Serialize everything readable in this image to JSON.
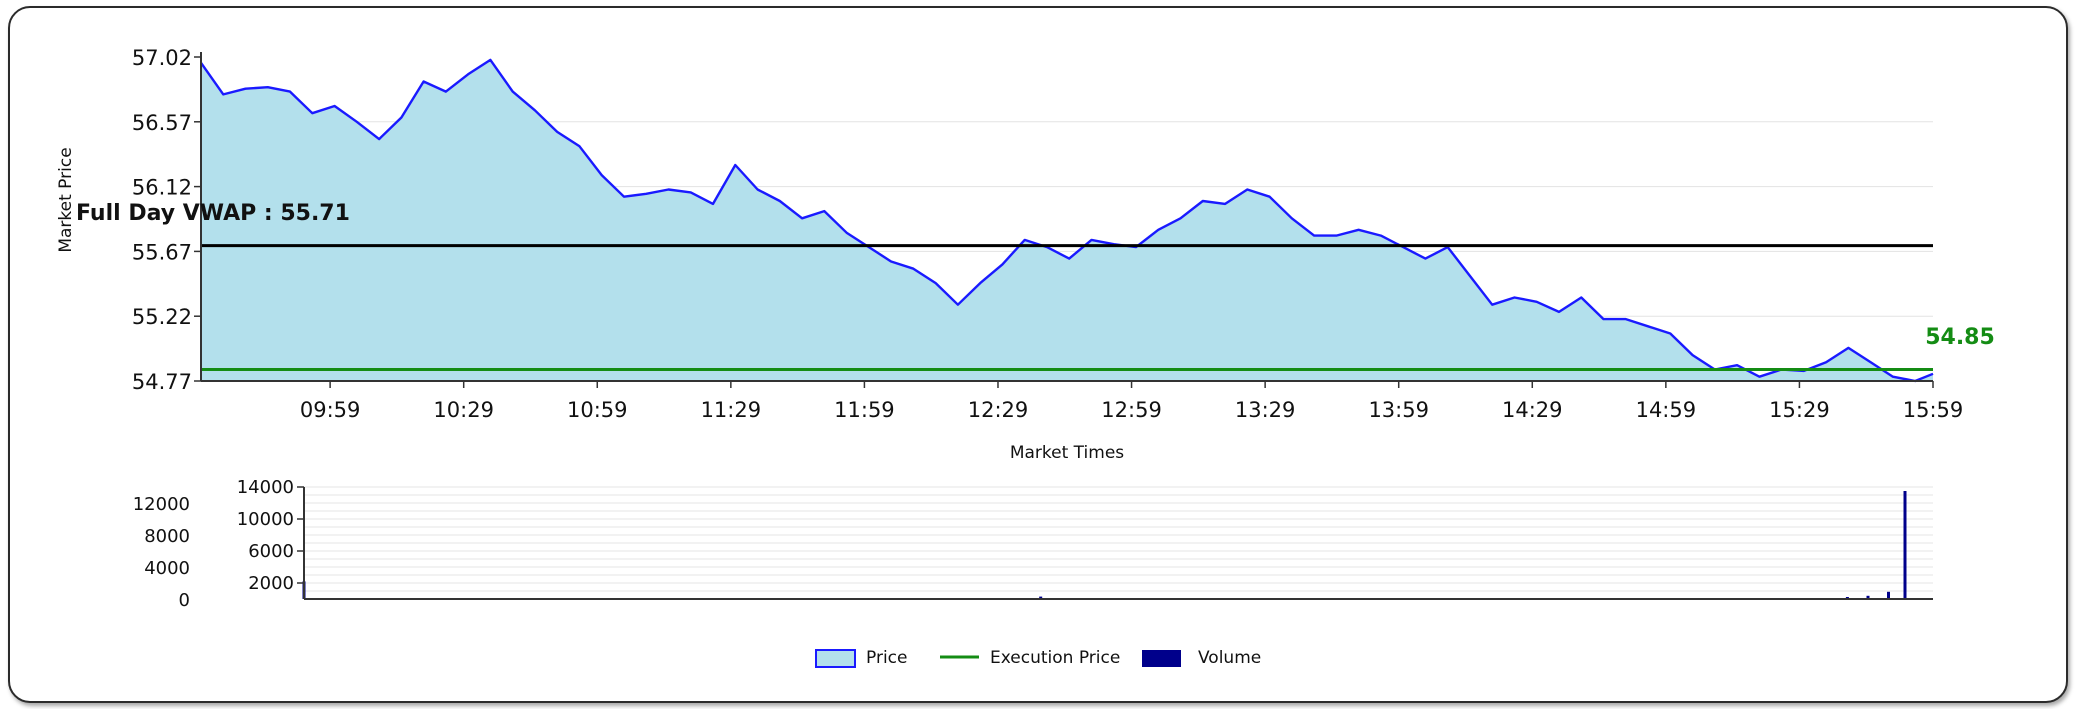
{
  "chart_data": [
    {
      "type": "area",
      "xlabel": "Market Times",
      "ylabel": "Market Price",
      "ylim": [
        54.77,
        57.02
      ],
      "y_ticks": [
        "57.02",
        "56.57",
        "56.12",
        "55.67",
        "55.22",
        "54.77"
      ],
      "x_ticks": [
        "09:59",
        "10:29",
        "10:59",
        "11:29",
        "11:59",
        "12:29",
        "12:59",
        "13:29",
        "13:59",
        "14:29",
        "14:59",
        "15:29",
        "15:59"
      ],
      "grid": true,
      "series": [
        {
          "name": "Price",
          "color": "#1a1aff",
          "fill": "#b3e0ec",
          "x": [
            "09:30",
            "09:35",
            "09:40",
            "09:45",
            "09:50",
            "09:55",
            "10:00",
            "10:05",
            "10:10",
            "10:15",
            "10:20",
            "10:25",
            "10:30",
            "10:35",
            "10:40",
            "10:45",
            "10:50",
            "10:55",
            "11:00",
            "11:05",
            "11:10",
            "11:15",
            "11:20",
            "11:25",
            "11:30",
            "11:35",
            "11:40",
            "11:45",
            "11:50",
            "11:55",
            "12:00",
            "12:05",
            "12:10",
            "12:15",
            "12:20",
            "12:25",
            "12:30",
            "12:35",
            "12:40",
            "12:45",
            "12:50",
            "12:55",
            "13:00",
            "13:05",
            "13:10",
            "13:15",
            "13:20",
            "13:25",
            "13:30",
            "13:35",
            "13:40",
            "13:45",
            "13:50",
            "13:55",
            "14:00",
            "14:05",
            "14:10",
            "14:15",
            "14:20",
            "14:25",
            "14:30",
            "14:35",
            "14:40",
            "14:45",
            "14:50",
            "14:55",
            "15:00",
            "15:05",
            "15:10",
            "15:15",
            "15:20",
            "15:25",
            "15:30",
            "15:35",
            "15:40",
            "15:45",
            "15:50",
            "15:55",
            "15:59"
          ],
          "values": [
            56.98,
            56.76,
            56.8,
            56.81,
            56.78,
            56.63,
            56.68,
            56.57,
            56.45,
            56.6,
            56.85,
            56.78,
            56.9,
            57.0,
            56.78,
            56.65,
            56.5,
            56.4,
            56.2,
            56.05,
            56.07,
            56.1,
            56.08,
            56.0,
            56.27,
            56.1,
            56.02,
            55.9,
            55.95,
            55.8,
            55.7,
            55.6,
            55.55,
            55.45,
            55.3,
            55.45,
            55.58,
            55.75,
            55.7,
            55.62,
            55.75,
            55.72,
            55.7,
            55.82,
            55.9,
            56.02,
            56.0,
            56.1,
            56.05,
            55.9,
            55.78,
            55.78,
            55.82,
            55.78,
            55.7,
            55.62,
            55.7,
            55.5,
            55.3,
            55.35,
            55.32,
            55.25,
            55.35,
            55.2,
            55.2,
            55.15,
            55.1,
            54.95,
            54.85,
            54.88,
            54.8,
            54.85,
            54.84,
            54.9,
            55.0,
            54.9,
            54.8,
            54.77,
            54.82
          ]
        },
        {
          "name": "Execution Price",
          "color": "#148c14",
          "value": 54.85
        }
      ],
      "reference_lines": [
        {
          "label": "Full Day VWAP : 55.71",
          "value": 55.71,
          "color": "#000000"
        }
      ],
      "annotations": [
        {
          "text": "54.85",
          "value": 54.85,
          "color": "#148c14"
        }
      ]
    },
    {
      "type": "bar",
      "ylim": [
        0,
        14000
      ],
      "y_ticks_inner": [
        "14000",
        "10000",
        "6000",
        "2000"
      ],
      "y_ticks_outer": [
        "12000",
        "8000",
        "4000",
        "0"
      ],
      "grid": true,
      "series": [
        {
          "name": "Volume",
          "color": "#00008b",
          "x": [
            "09:30",
            "12:00",
            "12:29",
            "15:30",
            "15:45",
            "15:50",
            "15:55",
            "15:59"
          ],
          "values": [
            2200,
            80,
            300,
            120,
            250,
            400,
            900,
            13500
          ]
        }
      ]
    }
  ],
  "legend": [
    {
      "label": "Price",
      "swatch": "area",
      "color": "#1a1aff",
      "fill": "#b3e0ec"
    },
    {
      "label": "Execution Price",
      "swatch": "line",
      "color": "#148c14"
    },
    {
      "label": "Volume",
      "swatch": "block",
      "color": "#00008b"
    }
  ]
}
